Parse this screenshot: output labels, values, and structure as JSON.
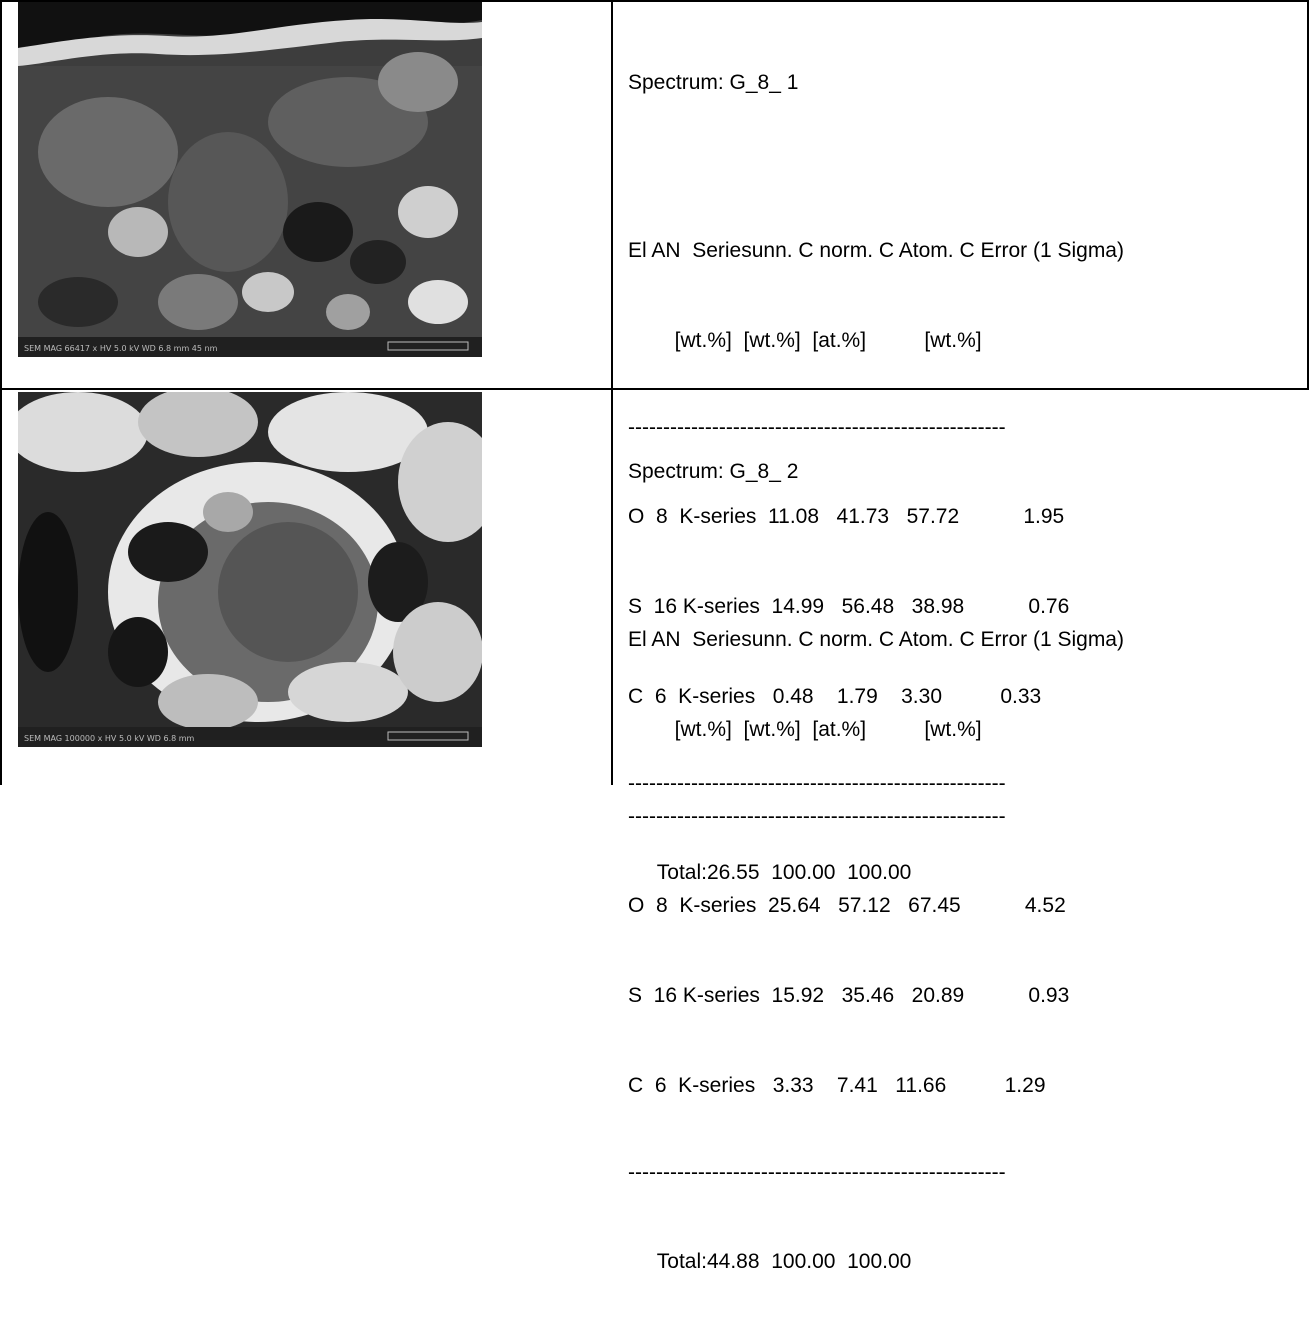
{
  "entries": [
    {
      "spectrum": "Spectrum: G_8_ 1",
      "header1": "El AN  Seriesunn. C norm. C Atom. C Error (1 Sigma)",
      "header2": "        [wt.%]  [wt.%]  [at.%]          [wt.%]",
      "separator": "------------------------------------------------------",
      "rows": [
        "O  8  K-series  11.08   41.73   57.72           1.95",
        "S  16 K-series  14.99   56.48   38.98           0.76",
        "C  6  K-series   0.48    1.79    3.30          0.33"
      ],
      "total": "     Total:26.55  100.00  100.00",
      "image_caption": "SEM MAG 66417 x  HV 5.0 kV  WD 6.8 mm  45 nm"
    },
    {
      "spectrum": "Spectrum: G_8_ 2",
      "header1": "El AN  Seriesunn. C norm. C Atom. C Error (1 Sigma)",
      "header2": "        [wt.%]  [wt.%]  [at.%]          [wt.%]",
      "separator": "------------------------------------------------------",
      "rows": [
        "O  8  K-series  25.64   57.12   67.45           4.52",
        "S  16 K-series  15.92   35.46   20.89           0.93",
        "C  6  K-series   3.33    7.41   11.66          1.29"
      ],
      "total": "     Total:44.88  100.00  100.00",
      "image_caption": "SEM MAG 100000 x  HV 5.0 kV  WD 6.8 mm"
    }
  ]
}
